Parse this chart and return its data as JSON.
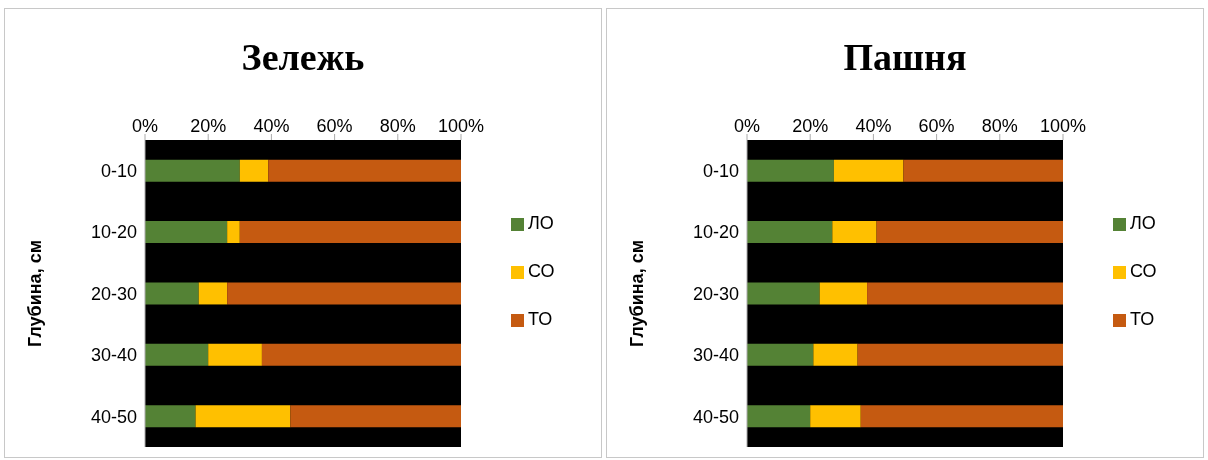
{
  "chart_data": [
    {
      "type": "bar",
      "title": "Зележь",
      "ylabel": "Глубина, см",
      "orientation": "horizontal",
      "stacked": true,
      "legend": "right",
      "grid": false,
      "categories": [
        "0-10",
        "10-20",
        "20-30",
        "30-40",
        "40-50"
      ],
      "series": [
        {
          "name": "ЛО",
          "color": "#548235",
          "values": [
            30,
            26,
            17,
            20,
            16
          ]
        },
        {
          "name": "СО",
          "color": "#ffc000",
          "values": [
            9,
            4,
            9,
            17,
            30
          ]
        },
        {
          "name": "ТО",
          "color": "#c55a11",
          "values": [
            61,
            70,
            74,
            63,
            54
          ]
        }
      ],
      "xlim": [
        0,
        100
      ],
      "xticks": [
        {
          "value": 0,
          "label": "0%"
        },
        {
          "value": 20,
          "label": "20%"
        },
        {
          "value": 40,
          "label": "40%"
        },
        {
          "value": 60,
          "label": "60%"
        },
        {
          "value": 80,
          "label": "80%"
        },
        {
          "value": 100,
          "label": "100%"
        }
      ]
    },
    {
      "type": "bar",
      "title": "Пашня",
      "ylabel": "Глубина, см",
      "orientation": "horizontal",
      "stacked": true,
      "legend": "right",
      "grid": false,
      "categories": [
        "0-10",
        "10-20",
        "20-30",
        "30-40",
        "40-50"
      ],
      "series": [
        {
          "name": "ЛО",
          "color": "#548235",
          "values": [
            27.5,
            27,
            23,
            21,
            20
          ]
        },
        {
          "name": "СО",
          "color": "#ffc000",
          "values": [
            22,
            14,
            15,
            14,
            16
          ]
        },
        {
          "name": "ТО",
          "color": "#c55a11",
          "values": [
            50.5,
            59,
            62,
            65,
            64
          ]
        }
      ],
      "xlim": [
        0,
        100
      ],
      "xticks": [
        {
          "value": 0,
          "label": "0%"
        },
        {
          "value": 20,
          "label": "20%"
        },
        {
          "value": 40,
          "label": "40%"
        },
        {
          "value": 60,
          "label": "60%"
        },
        {
          "value": 80,
          "label": "80%"
        },
        {
          "value": 100,
          "label": "100%"
        }
      ]
    }
  ]
}
